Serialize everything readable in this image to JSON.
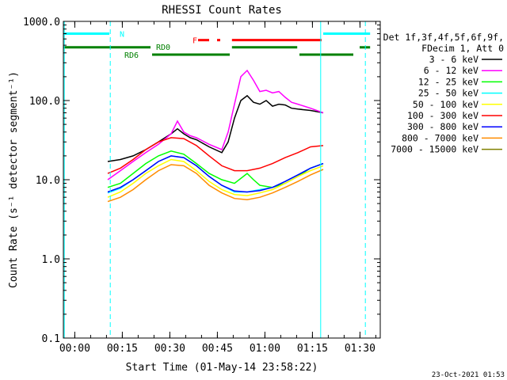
{
  "chart_data": {
    "type": "line",
    "title": "RHESSI Count Rates",
    "xlabel": "Start Time (01-May-14 23:58:22)",
    "ylabel": "Count Rate (s⁻¹ detector segment⁻¹)",
    "yscale": "log",
    "xlim": [
      -2,
      98
    ],
    "ylim": [
      0.1,
      1000
    ],
    "x_ticks": [
      {
        "value": 1.6,
        "label": "00:00"
      },
      {
        "value": 16.6,
        "label": "00:15"
      },
      {
        "value": 31.6,
        "label": "00:30"
      },
      {
        "value": 46.6,
        "label": "00:45"
      },
      {
        "value": 61.6,
        "label": "01:00"
      },
      {
        "value": 76.6,
        "label": "01:15"
      },
      {
        "value": 91.6,
        "label": "01:30"
      }
    ],
    "y_ticks": [
      {
        "value": 0.1,
        "label": "0.1"
      },
      {
        "value": 1,
        "label": "1.0"
      },
      {
        "value": 10,
        "label": "10.0"
      },
      {
        "value": 100,
        "label": "100.0"
      },
      {
        "value": 1000,
        "label": "1000.0"
      }
    ],
    "legend": {
      "placement": "top-right",
      "header": [
        "Det 1f,3f,4f,5f,6f,9f,",
        "FDecim 1, Att 0"
      ],
      "entries": [
        {
          "label": "3 - 6 keV",
          "color": "#000000"
        },
        {
          "label": "6 - 12 keV",
          "color": "#ff00ff"
        },
        {
          "label": "12 - 25 keV",
          "color": "#00ff00"
        },
        {
          "label": "25 - 50 keV",
          "color": "#00ffff"
        },
        {
          "label": "50 - 100 keV",
          "color": "#ffff00"
        },
        {
          "label": "100 - 300 keV",
          "color": "#ff0000"
        },
        {
          "label": "300 - 800 keV",
          "color": "#0000ff"
        },
        {
          "label": "800 - 7000 keV",
          "color": "#ff8c00"
        },
        {
          "label": "7000 - 15000 keV",
          "color": "#808000"
        }
      ]
    },
    "series": [
      {
        "name": "3 - 6 keV",
        "color": "#000000",
        "x": [
          12,
          16,
          20,
          24,
          28,
          32,
          34,
          36,
          38,
          40,
          44,
          48,
          50,
          52,
          54,
          56,
          58,
          60,
          62,
          64,
          66,
          68,
          70,
          72,
          76,
          80
        ],
        "y": [
          17,
          18,
          20,
          24,
          30,
          38,
          44,
          38,
          34,
          32,
          26,
          22,
          30,
          60,
          100,
          115,
          95,
          90,
          100,
          85,
          90,
          88,
          80,
          78,
          75,
          70
        ]
      },
      {
        "name": "6 - 12 keV",
        "color": "#ff00ff",
        "x": [
          12,
          16,
          20,
          24,
          28,
          32,
          34,
          36,
          38,
          40,
          44,
          48,
          50,
          52,
          54,
          56,
          58,
          60,
          62,
          64,
          66,
          68,
          70,
          72,
          76,
          80
        ],
        "y": [
          10,
          13,
          17,
          22,
          28,
          38,
          55,
          40,
          36,
          34,
          28,
          24,
          40,
          90,
          200,
          240,
          180,
          130,
          135,
          125,
          130,
          110,
          95,
          90,
          80,
          70
        ]
      },
      {
        "name": "12 - 25 keV",
        "color": "#00ff00",
        "x": [
          12,
          16,
          20,
          24,
          28,
          32,
          36,
          40,
          44,
          48,
          52,
          56,
          58,
          60,
          64,
          68,
          72,
          76,
          80
        ],
        "y": [
          8,
          9,
          12,
          16,
          20,
          23,
          21,
          16,
          12,
          10,
          9,
          12,
          10,
          8.5,
          8,
          9,
          11,
          14,
          16
        ]
      },
      {
        "name": "25 - 50 keV",
        "color": "#00ffff",
        "x": [
          12,
          16,
          20,
          24,
          28,
          32,
          36,
          40,
          44,
          48,
          52,
          56,
          60,
          64,
          68,
          72,
          76,
          80
        ],
        "y": [
          6.8,
          7.8,
          10,
          13,
          17,
          20,
          19,
          15,
          11,
          8.5,
          7,
          7,
          7.5,
          8,
          9.5,
          11.5,
          14,
          16
        ]
      },
      {
        "name": "50 - 100 keV",
        "color": "#ffff00",
        "x": [
          12,
          16,
          20,
          24,
          28,
          32,
          36,
          40,
          44,
          48,
          52,
          56,
          60,
          64,
          68,
          72,
          76,
          80
        ],
        "y": [
          6,
          7,
          9,
          12,
          15,
          18,
          17,
          13,
          9.5,
          7.5,
          6.5,
          6.3,
          6.8,
          7.5,
          9,
          11,
          13,
          15
        ]
      },
      {
        "name": "100 - 300 keV",
        "color": "#ff0000",
        "x": [
          12,
          16,
          20,
          24,
          28,
          32,
          36,
          40,
          44,
          48,
          52,
          56,
          60,
          64,
          68,
          72,
          76,
          80
        ],
        "y": [
          12,
          14,
          18,
          24,
          30,
          34,
          33,
          27,
          20,
          15,
          13,
          13,
          14,
          16,
          19,
          22,
          26,
          27
        ]
      },
      {
        "name": "300 - 800 keV",
        "color": "#0000ff",
        "x": [
          12,
          16,
          20,
          24,
          28,
          32,
          36,
          40,
          44,
          48,
          52,
          56,
          60,
          64,
          68,
          72,
          76,
          80
        ],
        "y": [
          7,
          8,
          10,
          13,
          17,
          20,
          19,
          15,
          11,
          8.5,
          7.2,
          7,
          7.3,
          8,
          9.5,
          11.5,
          14,
          16
        ]
      },
      {
        "name": "800 - 7000 keV",
        "color": "#ff8c00",
        "x": [
          12,
          16,
          20,
          24,
          28,
          32,
          36,
          40,
          44,
          48,
          52,
          56,
          60,
          64,
          68,
          72,
          76,
          80
        ],
        "y": [
          5.3,
          6,
          7.5,
          10,
          13,
          15.5,
          15,
          12,
          8.5,
          6.8,
          5.8,
          5.6,
          6,
          6.8,
          8,
          9.5,
          11.5,
          13.5
        ]
      }
    ],
    "annotations": [
      {
        "label": "N",
        "color": "#00ffff",
        "x": 16.5,
        "y": 700
      },
      {
        "label": "F",
        "color": "#ff0000",
        "x": 39.5,
        "y": 580
      },
      {
        "label": "RD0",
        "color": "#008000",
        "x": 29.5,
        "y": 480
      },
      {
        "label": "RD6",
        "color": "#008000",
        "x": 19.5,
        "y": 380
      }
    ],
    "state_bars": [
      {
        "name": "N",
        "color": "#00ffff",
        "y": 700,
        "segments": [
          [
            -2,
            12.5
          ],
          [
            80,
            94.8
          ]
        ]
      },
      {
        "name": "F",
        "color": "#ff0000",
        "y": 580,
        "segments": [
          [
            40.5,
            44
          ],
          [
            46.5,
            47.5
          ],
          [
            51.2,
            79.5
          ]
        ]
      },
      {
        "name": "RD0",
        "color": "#008000",
        "y": 470,
        "segments": [
          [
            -2,
            25.5
          ],
          [
            51.2,
            71.8
          ],
          [
            91.5,
            94.8
          ]
        ]
      },
      {
        "name": "RD6",
        "color": "#008000",
        "y": 380,
        "segments": [
          [
            26,
            50.5
          ],
          [
            72.5,
            89.5
          ]
        ]
      }
    ],
    "vlines": [
      {
        "x": -1.7,
        "color": "#00ffff",
        "style": "solid"
      },
      {
        "x": 12.8,
        "color": "#00ffff",
        "style": "dashed"
      },
      {
        "x": 79.2,
        "color": "#00ffff",
        "style": "solid"
      },
      {
        "x": 93.3,
        "color": "#00ffff",
        "style": "dashed"
      }
    ]
  },
  "footer": {
    "timestamp": "23-Oct-2021 01:53"
  }
}
